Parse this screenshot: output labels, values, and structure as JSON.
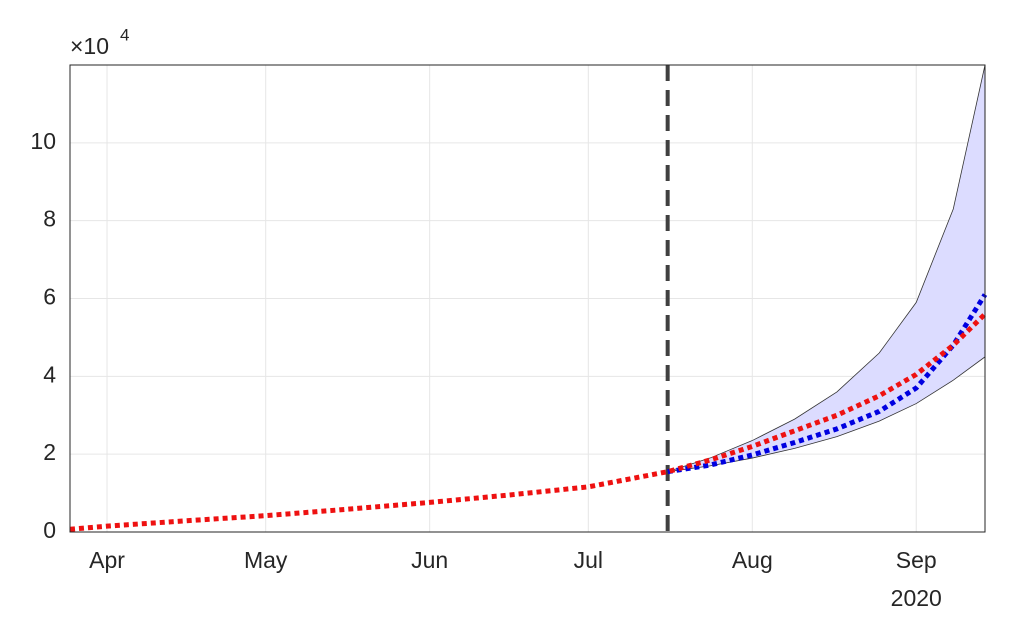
{
  "chart_data": {
    "type": "line",
    "x": [
      85,
      92,
      106,
      122,
      137,
      153,
      168,
      183,
      198,
      206,
      214,
      222,
      230,
      238,
      245,
      252,
      258
    ],
    "series": [
      {
        "color": "#0000e0",
        "values": [
          null,
          null,
          null,
          null,
          null,
          null,
          null,
          null,
          1.55,
          1.72,
          1.98,
          2.3,
          2.65,
          3.1,
          3.7,
          4.8,
          6.1
        ]
      },
      {
        "color": "#ee1111",
        "values": [
          0.07,
          0.15,
          0.28,
          0.42,
          0.58,
          0.76,
          0.95,
          1.16,
          1.55,
          1.85,
          2.2,
          2.6,
          3.0,
          3.5,
          4.05,
          4.8,
          5.6
        ]
      }
    ],
    "band": {
      "color": "#dcdcff",
      "upper": [
        null,
        null,
        null,
        null,
        null,
        null,
        null,
        null,
        1.55,
        1.9,
        2.35,
        2.9,
        3.6,
        4.6,
        5.9,
        8.3,
        12.0
      ],
      "lower": [
        null,
        null,
        null,
        null,
        null,
        null,
        null,
        null,
        1.55,
        1.7,
        1.9,
        2.15,
        2.45,
        2.85,
        3.3,
        3.9,
        4.5
      ]
    },
    "vline": 198,
    "xlim": [
      85,
      258
    ],
    "xticks": [
      {
        "value": 92,
        "label": "Apr"
      },
      {
        "value": 122,
        "label": "May"
      },
      {
        "value": 153,
        "label": "Jun"
      },
      {
        "value": 183,
        "label": "Jul"
      },
      {
        "value": 214,
        "label": "Aug"
      },
      {
        "value": 245,
        "label": "Sep"
      }
    ],
    "x_year_label": "2020",
    "ylim": [
      0,
      12
    ],
    "yticks": [
      0,
      2,
      4,
      6,
      8,
      10
    ],
    "y_multiplier": {
      "base": "×10",
      "exponent": "4"
    },
    "grid": true
  }
}
